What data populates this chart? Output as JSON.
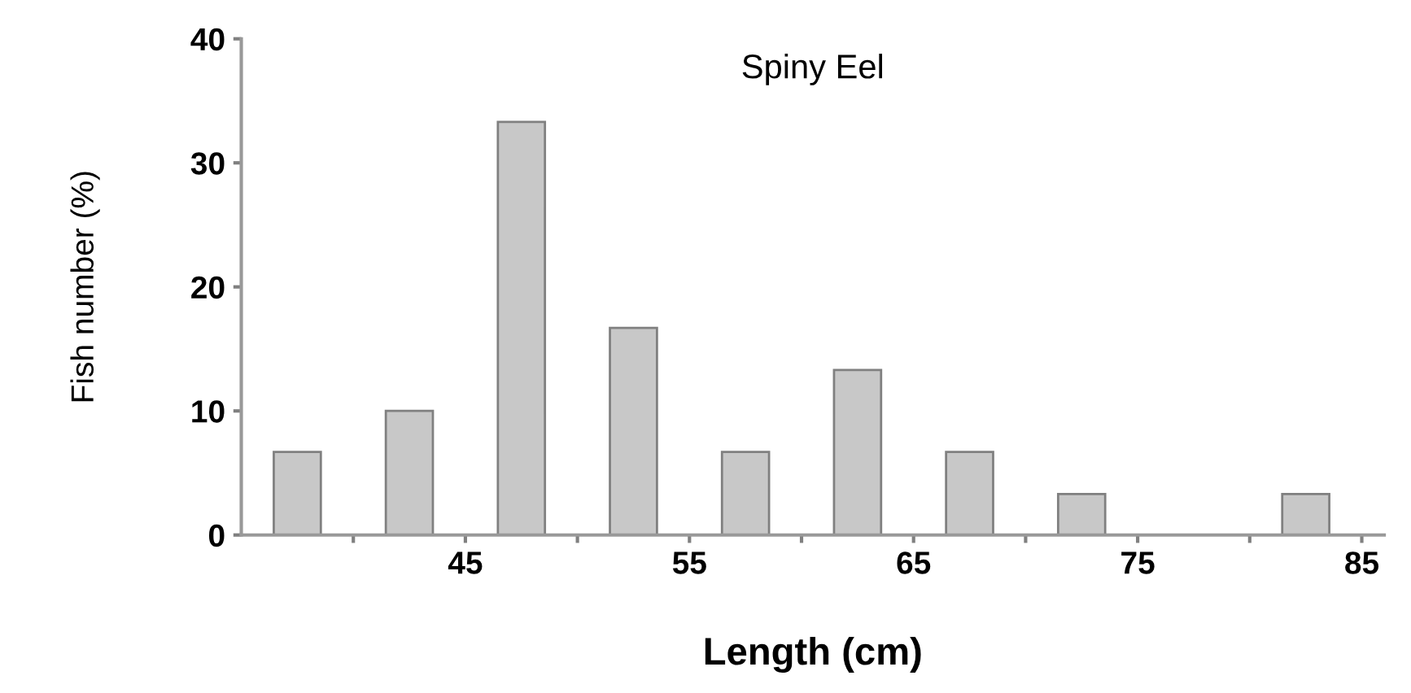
{
  "chart_data": {
    "type": "histogram",
    "title": "Spiny Eel",
    "xlabel": "Length (cm)",
    "ylabel": "Fish number (%)",
    "bins": [
      35,
      40,
      45,
      50,
      55,
      60,
      65,
      70,
      75,
      80,
      85
    ],
    "values": [
      6.7,
      10,
      33.3,
      16.7,
      6.7,
      13.3,
      6.7,
      3.3,
      0,
      3.3
    ],
    "color": "#c8c8c8",
    "xlim": [
      35,
      86
    ],
    "xticks": [
      {
        "value": 40,
        "label": null
      },
      45,
      {
        "value": 50,
        "label": null
      },
      55,
      {
        "value": 60,
        "label": null
      },
      65,
      {
        "value": 70,
        "label": null
      },
      75,
      {
        "value": 80,
        "label": null
      },
      85
    ],
    "ylim": [
      0,
      40
    ],
    "yticks": [
      0,
      10,
      20,
      30,
      40
    ],
    "grid": false
  }
}
